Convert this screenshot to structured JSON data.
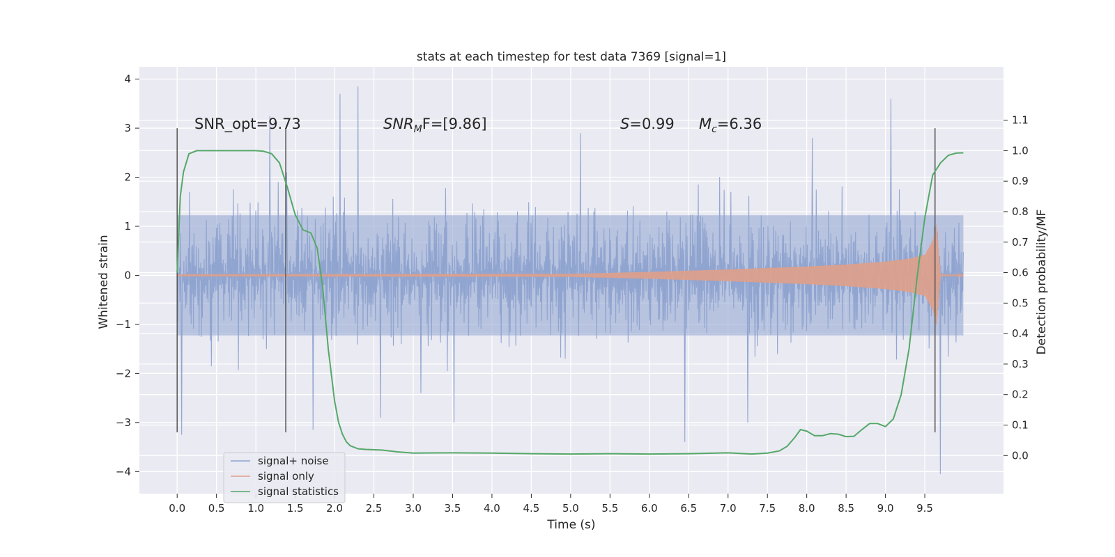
{
  "chart_data": {
    "type": "line",
    "title": "stats at each timestep for test data 7369 [signal=1]",
    "xlabel": "Time (s)",
    "ylabel": "Whitened strain",
    "y2label": "Detection probability/MF",
    "xlim": [
      -0.48,
      10.5
    ],
    "ylim": [
      -4.45,
      4.25
    ],
    "y2lim": [
      -0.125,
      1.275
    ],
    "x_ticks": [
      "0.0",
      "0.5",
      "1.0",
      "1.5",
      "2.0",
      "2.5",
      "3.0",
      "3.5",
      "4.0",
      "4.5",
      "5.0",
      "5.5",
      "6.0",
      "6.5",
      "7.0",
      "7.5",
      "8.0",
      "8.5",
      "9.0",
      "9.5"
    ],
    "x_tick_values": [
      0,
      0.5,
      1,
      1.5,
      2,
      2.5,
      3,
      3.5,
      4,
      4.5,
      5,
      5.5,
      6,
      6.5,
      7,
      7.5,
      8,
      8.5,
      9,
      9.5
    ],
    "y_ticks": [
      "−4",
      "−3",
      "−2",
      "−1",
      "0",
      "1",
      "2",
      "3",
      "4"
    ],
    "y_tick_values": [
      -4,
      -3,
      -2,
      -1,
      0,
      1,
      2,
      3,
      4
    ],
    "y2_ticks": [
      "0.0",
      "0.1",
      "0.2",
      "0.3",
      "0.4",
      "0.5",
      "0.6",
      "0.7",
      "0.8",
      "0.9",
      "1.0",
      "1.1"
    ],
    "y2_tick_values": [
      0,
      0.1,
      0.2,
      0.3,
      0.4,
      0.5,
      0.6,
      0.7,
      0.8,
      0.9,
      1.0,
      1.1
    ],
    "grid": true,
    "legend_position": "lower-left",
    "annotations": {
      "snr_opt": "SNR_opt=9.73",
      "snr_mf_base": "SNR",
      "snr_mf_sub": "M",
      "snr_mf_rest": "F=[9.86]",
      "s_var": "S",
      "s_rest": "=0.99",
      "mc_var": "M",
      "mc_sub": "c",
      "mc_rest": "=6.36"
    },
    "vertical_lines_x": [
      0.0,
      1.38,
      9.63
    ],
    "series": [
      {
        "name": "signal+ noise",
        "color": "#8da2cf",
        "axis": "left",
        "x_range": [
          0,
          9.99
        ],
        "envelope_typical_abs": 1.7,
        "peaks": [
          [
            1.39,
            2.1
          ],
          [
            2.07,
            3.7
          ],
          [
            2.3,
            3.85
          ],
          [
            2.58,
            -2.9
          ],
          [
            3.1,
            -2.4
          ],
          [
            3.52,
            -3.0
          ],
          [
            5.12,
            2.9
          ],
          [
            6.45,
            -3.4
          ],
          [
            7.25,
            -3.0
          ],
          [
            8.07,
            2.8
          ],
          [
            9.07,
            3.6
          ],
          [
            9.7,
            -4.05
          ],
          [
            1.73,
            -3.15
          ],
          [
            0.06,
            -3.25
          ],
          [
            1.18,
            3.25
          ]
        ]
      },
      {
        "name": "signal only",
        "color": "#e0a088",
        "axis": "left",
        "x_range": [
          0,
          9.99
        ],
        "merger_time": 9.65,
        "envelope_x": [
          0,
          5.0,
          6.0,
          7.0,
          8.0,
          8.5,
          9.0,
          9.3,
          9.5,
          9.6,
          9.65,
          9.7,
          9.99
        ],
        "envelope_abs": [
          0.02,
          0.03,
          0.07,
          0.12,
          0.18,
          0.22,
          0.28,
          0.34,
          0.42,
          0.7,
          1.05,
          0.02,
          0.01
        ]
      },
      {
        "name": "signal statistics",
        "color": "#55a868",
        "axis": "right",
        "x": [
          0.0,
          0.04,
          0.08,
          0.15,
          0.25,
          0.5,
          0.8,
          1.0,
          1.1,
          1.2,
          1.3,
          1.4,
          1.5,
          1.6,
          1.7,
          1.78,
          1.85,
          1.92,
          2.0,
          2.05,
          2.1,
          2.15,
          2.2,
          2.3,
          2.4,
          2.6,
          2.8,
          3.0,
          3.5,
          4.0,
          4.5,
          5.0,
          5.5,
          6.0,
          6.5,
          7.0,
          7.3,
          7.5,
          7.65,
          7.75,
          7.85,
          7.92,
          8.0,
          8.1,
          8.2,
          8.3,
          8.4,
          8.5,
          8.6,
          8.7,
          8.8,
          8.9,
          9.0,
          9.1,
          9.2,
          9.3,
          9.4,
          9.5,
          9.6,
          9.7,
          9.8,
          9.9,
          9.99
        ],
        "y": [
          0.6,
          0.85,
          0.93,
          0.99,
          1.0,
          1.0,
          1.0,
          1.0,
          0.998,
          0.99,
          0.96,
          0.88,
          0.79,
          0.74,
          0.73,
          0.68,
          0.55,
          0.35,
          0.18,
          0.11,
          0.07,
          0.045,
          0.032,
          0.022,
          0.02,
          0.018,
          0.012,
          0.008,
          0.009,
          0.008,
          0.006,
          0.005,
          0.006,
          0.005,
          0.006,
          0.009,
          0.005,
          0.008,
          0.015,
          0.03,
          0.06,
          0.085,
          0.08,
          0.065,
          0.065,
          0.072,
          0.07,
          0.062,
          0.063,
          0.085,
          0.105,
          0.105,
          0.095,
          0.12,
          0.2,
          0.35,
          0.58,
          0.78,
          0.92,
          0.96,
          0.985,
          0.992,
          0.993
        ]
      }
    ]
  }
}
